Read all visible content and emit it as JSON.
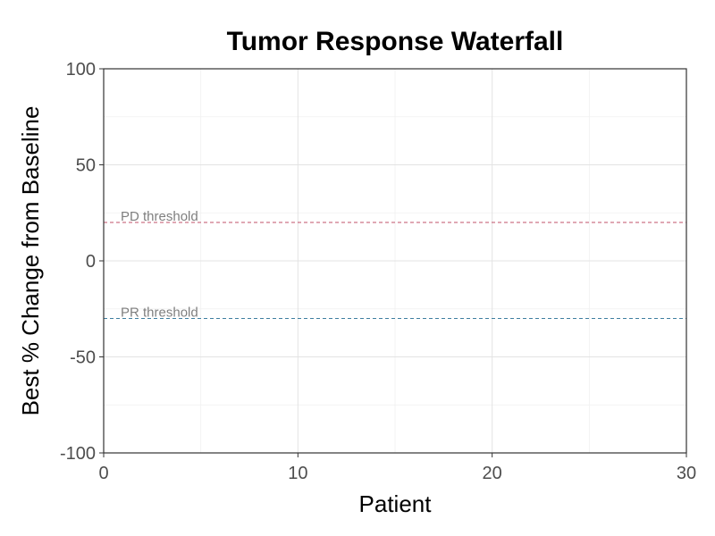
{
  "chart_data": {
    "type": "bar",
    "title": "Tumor Response Waterfall",
    "xlabel": "Patient",
    "ylabel": "Best % Change from Baseline",
    "xlim": [
      0,
      30
    ],
    "ylim": [
      -100,
      100
    ],
    "x_ticks": [
      0,
      10,
      20,
      30
    ],
    "y_ticks": [
      -100,
      -50,
      0,
      50,
      100
    ],
    "grid": true,
    "series": [
      {
        "x": [],
        "values": []
      }
    ],
    "reference_lines": [
      {
        "label": "PD threshold",
        "value": 20,
        "color": "#c0506a"
      },
      {
        "label": "PR threshold",
        "value": -30,
        "color": "#3f7fa0"
      }
    ]
  }
}
